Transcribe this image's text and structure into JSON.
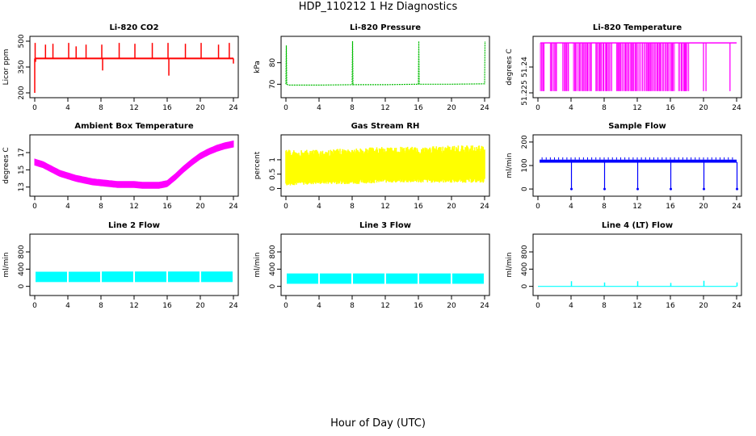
{
  "title": "HDP_110212  1 Hz Diagnostics",
  "x_axis_title": "Hour of Day (UTC)",
  "chart_data": [
    {
      "type": "line",
      "title": "Li-820 CO2",
      "ylabel": "Licor ppm",
      "color": "#ff0000",
      "xlim": [
        0,
        24
      ],
      "ylim": [
        200,
        500
      ],
      "xticks": [
        0,
        4,
        8,
        12,
        16,
        20,
        24
      ],
      "yticks": [
        200,
        350,
        500
      ],
      "series": [
        {
          "x": [
            0,
            0.05,
            0.1,
            0.15,
            1.0,
            1.3,
            2.0,
            2.2,
            4.0,
            4.1,
            4.5,
            5.0,
            6.0,
            6.2,
            8.0,
            8.1,
            8.2,
            9.0,
            10.0,
            10.2,
            12.0,
            12.1,
            13.0,
            14.0,
            14.2,
            16.0,
            16.1,
            16.2,
            17.0,
            18.0,
            18.2,
            20.0,
            20.1,
            21.0,
            22.0,
            22.2,
            23.5,
            24.0
          ],
          "y": [
            200,
            490,
            380,
            400,
            400,
            480,
            400,
            485,
            400,
            490,
            400,
            470,
            400,
            480,
            400,
            480,
            330,
            400,
            400,
            490,
            400,
            485,
            400,
            400,
            490,
            400,
            490,
            300,
            400,
            400,
            485,
            400,
            490,
            400,
            400,
            480,
            490,
            370
          ]
        }
      ]
    },
    {
      "type": "line",
      "title": "Li-820 Pressure",
      "ylabel": "kPa",
      "color": "#00bb00",
      "xlim": [
        0,
        24
      ],
      "ylim": [
        66,
        90
      ],
      "xticks": [
        0,
        4,
        8,
        12,
        16,
        20,
        24
      ],
      "yticks": [
        70,
        80
      ],
      "series": [
        {
          "x": [
            0,
            0.05,
            0.1,
            0.3,
            4.0,
            8.0,
            8.05,
            8.1,
            12.0,
            16.0,
            16.05,
            16.1,
            20.0,
            24.0,
            24.05
          ],
          "y": [
            70,
            88,
            70,
            69.6,
            69.6,
            69.8,
            90,
            69.8,
            69.8,
            70,
            90,
            70,
            70,
            70.2,
            90
          ]
        }
      ]
    },
    {
      "type": "line",
      "title": "Li-820 Temperature",
      "ylabel": "degrees C",
      "color": "#ff00ff",
      "xlim": [
        0,
        24
      ],
      "ylim": [
        51.225,
        51.255
      ],
      "xticks": [
        0,
        4,
        8,
        12,
        16,
        20,
        24
      ],
      "yticks": [
        51.225,
        51.24
      ],
      "series": [
        {
          "x": [
            0.5,
            1.0,
            1.8,
            2.5,
            3.6,
            4.5,
            5.5,
            6.0,
            6.8,
            7.6,
            8.5,
            9.0,
            9.6,
            10.2,
            10.8,
            11.5,
            12.0,
            12.6,
            13.3,
            14.0,
            14.6,
            15.3,
            16.0,
            16.6,
            17.3,
            18.0,
            20.0,
            20.5,
            23.0,
            23.5
          ],
          "y": [
            51.254,
            51.254,
            51.254,
            51.254,
            51.254,
            51.254,
            51.254,
            51.254,
            51.254,
            51.254,
            51.254,
            51.254,
            51.254,
            51.254,
            51.254,
            51.254,
            51.254,
            51.254,
            51.254,
            51.254,
            51.254,
            51.254,
            51.254,
            51.254,
            51.254,
            51.254,
            51.254,
            51.254,
            51.254,
            51.254
          ]
        }
      ]
    },
    {
      "type": "line",
      "title": "Ambient Box Temperature",
      "ylabel": "degrees C",
      "color": "#ff00ff",
      "xlim": [
        0,
        24
      ],
      "ylim": [
        12.5,
        18.5
      ],
      "xticks": [
        0,
        4,
        8,
        12,
        16,
        20,
        24
      ],
      "yticks": [
        13,
        15,
        17
      ],
      "series": [
        {
          "x": [
            0,
            1,
            2,
            3,
            4,
            5,
            6,
            7,
            8,
            9,
            10,
            11,
            12,
            13,
            14,
            15,
            16,
            17,
            18,
            19,
            20,
            21,
            22,
            23,
            24
          ],
          "y": [
            15.9,
            15.6,
            15.1,
            14.6,
            14.3,
            14.0,
            13.8,
            13.6,
            13.5,
            13.4,
            13.3,
            13.3,
            13.3,
            13.2,
            13.2,
            13.2,
            13.4,
            14.2,
            15.1,
            15.9,
            16.6,
            17.1,
            17.5,
            17.8,
            18.0
          ]
        }
      ]
    },
    {
      "type": "line",
      "title": "Gas Stream RH",
      "ylabel": "percent",
      "color": "#ffff00",
      "xlim": [
        0,
        24
      ],
      "ylim": [
        -0.1,
        1.7
      ],
      "xticks": [
        0,
        4,
        8,
        12,
        16,
        20,
        24
      ],
      "yticks": [
        0.0,
        0.5,
        1.0
      ],
      "series": [
        {
          "name": "upper",
          "x": [
            0,
            4,
            8,
            12,
            16,
            20,
            24
          ],
          "y": [
            1.35,
            1.35,
            1.4,
            1.45,
            1.45,
            1.5,
            1.5
          ]
        },
        {
          "name": "lower",
          "x": [
            0,
            4,
            8,
            12,
            16,
            20,
            24
          ],
          "y": [
            0.2,
            0.25,
            0.25,
            0.3,
            0.3,
            0.3,
            0.3
          ]
        }
      ]
    },
    {
      "type": "line",
      "title": "Sample Flow",
      "ylabel": "ml/min",
      "color": "#0000ff",
      "xlim": [
        0,
        24
      ],
      "ylim": [
        -10,
        210
      ],
      "xticks": [
        0,
        4,
        8,
        12,
        16,
        20,
        24
      ],
      "yticks": [
        0,
        100,
        200
      ],
      "series": [
        {
          "x": [
            0,
            4,
            4.05,
            4.1,
            8,
            8.05,
            8.1,
            12,
            12.05,
            12.1,
            16,
            16.05,
            16.1,
            20,
            20.05,
            20.1,
            24,
            24.05
          ],
          "y": [
            120,
            115,
            0,
            118,
            115,
            0,
            118,
            115,
            0,
            118,
            115,
            0,
            118,
            115,
            0,
            118,
            115,
            0
          ]
        }
      ]
    },
    {
      "type": "area",
      "title": "Line 2 Flow",
      "ylabel": "ml/min",
      "color": "#00ffff",
      "xlim": [
        0,
        24
      ],
      "ylim": [
        -100,
        1100
      ],
      "xticks": [
        0,
        4,
        8,
        12,
        16,
        20,
        24
      ],
      "yticks": [
        0,
        400,
        800
      ],
      "series": [
        {
          "name": "upper",
          "x": [
            0,
            4,
            8,
            12,
            16,
            20,
            24
          ],
          "y": [
            340,
            340,
            345,
            345,
            345,
            345,
            340
          ]
        },
        {
          "name": "lower",
          "x": [
            0,
            4,
            8,
            12,
            16,
            20,
            24
          ],
          "y": [
            100,
            100,
            100,
            100,
            100,
            100,
            100
          ]
        }
      ]
    },
    {
      "type": "area",
      "title": "Line 3 Flow",
      "ylabel": "ml/min",
      "color": "#00ffff",
      "xlim": [
        0,
        24
      ],
      "ylim": [
        -100,
        1100
      ],
      "xticks": [
        0,
        4,
        8,
        12,
        16,
        20,
        24
      ],
      "yticks": [
        0,
        400,
        800
      ],
      "series": [
        {
          "name": "upper",
          "x": [
            0,
            4,
            8,
            12,
            16,
            20,
            24
          ],
          "y": [
            300,
            300,
            300,
            300,
            300,
            300,
            300
          ]
        },
        {
          "name": "lower",
          "x": [
            0,
            4,
            8,
            12,
            16,
            20,
            24
          ],
          "y": [
            60,
            60,
            60,
            60,
            60,
            60,
            60
          ]
        }
      ]
    },
    {
      "type": "line",
      "title": "Line 4 (LT) Flow",
      "ylabel": "ml/min",
      "color": "#00ffff",
      "xlim": [
        0,
        24
      ],
      "ylim": [
        -100,
        1100
      ],
      "xticks": [
        0,
        4,
        8,
        12,
        16,
        20,
        24
      ],
      "yticks": [
        0,
        400,
        800
      ],
      "series": [
        {
          "x": [
            0,
            4,
            4.05,
            4.1,
            8,
            8.05,
            8.1,
            12,
            12.05,
            12.1,
            16,
            16.05,
            16.1,
            20,
            20.05,
            20.1,
            24,
            24.05
          ],
          "y": [
            0,
            0,
            120,
            0,
            0,
            90,
            0,
            0,
            120,
            0,
            0,
            80,
            0,
            0,
            130,
            0,
            0,
            90
          ]
        }
      ]
    }
  ]
}
